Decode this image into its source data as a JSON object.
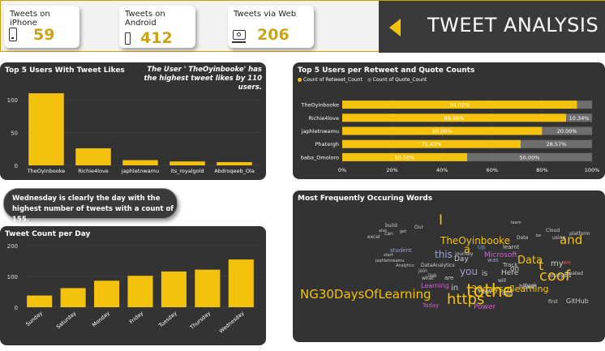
{
  "header": {
    "title": "TWEET ANALYSIS",
    "kpis": [
      {
        "label": "Tweets on iPhone",
        "value": "59",
        "icon": "phone-icon"
      },
      {
        "label": "Tweets on Android",
        "value": "412",
        "icon": "phone-icon"
      },
      {
        "label": "Tweets via Web",
        "value": "206",
        "icon": "monitor-icon"
      }
    ],
    "kpi_label_android_line1": "Tweets on",
    "kpi_label_android_line2": "Android"
  },
  "likes_panel": {
    "title": "Top 5 Users With Tweet Likes",
    "note": "The User ' TheOyinbooke' has the highest tweet likes by 110 users."
  },
  "callout": {
    "text": "Wednesday is clearly the day with the highest number of tweets with a count of 155."
  },
  "day_panel": {
    "title": "Tweet Count per Day"
  },
  "retweet_panel": {
    "title": "Top 5 Users per Retweet and Quote Counts",
    "legend": [
      "Count of Retweet_Count",
      "Count of Quote_Count"
    ]
  },
  "words_panel": {
    "title": "Most Frequently Occuring Words"
  },
  "colors": {
    "bar": "#f4c20d",
    "grey": "#6e6e6e",
    "panel": "#333333",
    "accent": "#c9a418"
  },
  "chart_data": [
    {
      "type": "bar",
      "title": "Top 5 Users With Tweet Likes",
      "categories": [
        "TheOyinbooke",
        "Richie4love",
        "japhletnwamu",
        "its_royalgold",
        "Abdroqeeb_Ola"
      ],
      "values": [
        110,
        26,
        8,
        6,
        5
      ],
      "ylim": [
        0,
        120
      ],
      "yticks": [
        0,
        50,
        100
      ]
    },
    {
      "type": "bar",
      "title": "Tweet Count per Day",
      "categories": [
        "Sunday",
        "Saturday",
        "Monday",
        "Friday",
        "Tuesday",
        "Thursday",
        "Wednesday"
      ],
      "values": [
        38,
        62,
        86,
        102,
        116,
        122,
        155
      ],
      "ylim": [
        0,
        200
      ],
      "yticks": [
        0,
        100,
        200
      ]
    },
    {
      "type": "bar",
      "title": "Top 5 Users per Retweet and Quote Counts",
      "orientation": "horizontal-stacked-100",
      "categories": [
        "TheOyinbooke",
        "Richie4love",
        "japhletnwamu",
        "Phatergh",
        "baba_Omoloro"
      ],
      "series": [
        {
          "name": "Count of Retweet_Count",
          "values": [
            94.02,
            89.66,
            80.0,
            71.43,
            50.0
          ],
          "labels": [
            "94.02%",
            "89.66%",
            "80.00%",
            "71.43%",
            "50.00%"
          ]
        },
        {
          "name": "Count of Quote_Count",
          "values": [
            5.98,
            10.34,
            20.0,
            28.57,
            50.0
          ],
          "labels": [
            "",
            "10.34%",
            "20.00%",
            "28.57%",
            "50.00%"
          ]
        }
      ],
      "xticks": [
        "0%",
        "20%",
        "40%",
        "60%",
        "80%",
        "100%"
      ]
    }
  ],
  "word_cloud": [
    {
      "text": "NG30DaysOfLearning",
      "color": "#f4c20d"
    },
    {
      "text": "https",
      "color": "#f4c20d"
    },
    {
      "text": "tothe",
      "color": "#f4c20d"
    },
    {
      "text": "TheOyinbooke",
      "color": "#f4c20d"
    },
    {
      "text": "30daysoflearning",
      "color": "#f4c20d"
    },
    {
      "text": "and",
      "color": "#f4c20d"
    },
    {
      "text": "coof",
      "color": "#f4c20d"
    },
    {
      "text": "Data",
      "color": "#f4c20d"
    },
    {
      "text": "a",
      "color": "#f4c20d"
    },
    {
      "text": "I",
      "color": "#f4c20d"
    },
    {
      "text": "t",
      "color": "#f4c20d"
    },
    {
      "text": "this",
      "color": "#9aa3d8"
    },
    {
      "text": "you",
      "color": "#9aa3d8"
    },
    {
      "text": "Microsoft",
      "color": "#d060d0"
    },
    {
      "text": "Day",
      "color": "#cccccc"
    },
    {
      "text": "my",
      "color": "#cccccc"
    },
    {
      "text": "GitHub",
      "color": "#cccccc"
    },
    {
      "text": "in",
      "color": "#cccccc"
    },
    {
      "text": "is",
      "color": "#cccccc"
    },
    {
      "text": "how",
      "color": "#cccccc"
    },
    {
      "text": "Power",
      "color": "#d060d0"
    },
    {
      "text": "Learning",
      "color": "#d060d0"
    },
    {
      "text": "Here",
      "color": "#cccccc"
    },
    {
      "text": "on",
      "color": "#cccccc"
    },
    {
      "text": "we",
      "color": "#e05050"
    },
    {
      "text": "analysis",
      "color": "#cccccc"
    },
    {
      "text": "have",
      "color": "#cccccc"
    },
    {
      "text": "Today",
      "color": "#d060d0"
    },
    {
      "text": "first",
      "color": "#cccccc"
    },
    {
      "text": "using",
      "color": "#cccccc"
    },
    {
      "text": "Track",
      "color": "#cccccc"
    },
    {
      "text": "learnt",
      "color": "#cccccc"
    },
    {
      "text": "was",
      "color": "#9aa3d8"
    },
    {
      "text": "Up",
      "color": "#5aa0e0"
    },
    {
      "text": "excel",
      "color": "#cccccc"
    },
    {
      "text": "can",
      "color": "#cccccc"
    },
    {
      "text": "build",
      "color": "#cccccc"
    },
    {
      "text": "Our",
      "color": "#cccccc"
    },
    {
      "text": "student",
      "color": "#9aa3d8"
    },
    {
      "text": "join",
      "color": "#cccccc"
    },
    {
      "text": "are",
      "color": "#cccccc"
    },
    {
      "text": "DataAnalytics",
      "color": "#cccccc"
    },
    {
      "text": "Analytics",
      "color": "#cccccc"
    },
    {
      "text": "journey",
      "color": "#cccccc"
    },
    {
      "text": "learn",
      "color": "#cccccc"
    },
    {
      "text": "Cloud",
      "color": "#cccccc"
    },
    {
      "text": "platform",
      "color": "#cccccc"
    },
    {
      "text": "japhletnwamu",
      "color": "#cccccc"
    },
    {
      "text": "link",
      "color": "#cccccc"
    },
    {
      "text": "what",
      "color": "#cccccc"
    },
    {
      "text": "also",
      "color": "#cccccc"
    },
    {
      "text": "get",
      "color": "#cccccc"
    },
    {
      "text": "start",
      "color": "#cccccc"
    },
    {
      "text": "will",
      "color": "#cccccc"
    },
    {
      "text": "created",
      "color": "#cccccc"
    },
    {
      "text": "thank",
      "color": "#cccccc"
    },
    {
      "text": "data",
      "color": "#cccccc"
    },
    {
      "text": "Data",
      "color": "#cccccc"
    },
    {
      "text": "be",
      "color": "#cccccc"
    }
  ]
}
